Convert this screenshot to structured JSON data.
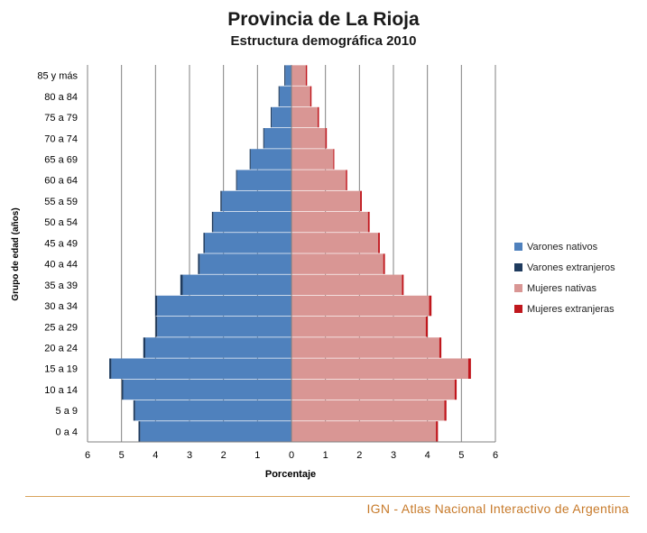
{
  "title": "Provincia de La Rioja",
  "subtitle": "Estructura demográfica 2010",
  "footer": "IGN - Atlas Nacional Interactivo de Argentina",
  "colors": {
    "varones_nativos": "#4f81bd",
    "varones_extranjeros": "#1f3b5e",
    "mujeres_nativas": "#d99694",
    "mujeres_extranjeras": "#c0171d",
    "footer": "#c77a2a",
    "grid": "#808080"
  },
  "chart_data": {
    "type": "bar",
    "orientation": "horizontal-pyramid",
    "title": "Provincia de La Rioja",
    "subtitle": "Estructura demográfica 2010",
    "xlabel": "Porcentaje",
    "ylabel": "Grupo de edad (años)",
    "xlim": [
      -6,
      6
    ],
    "xticks": [
      -6,
      -5,
      -4,
      -3,
      -2,
      -1,
      0,
      1,
      2,
      3,
      4,
      5,
      6
    ],
    "xtick_labels": [
      "6",
      "5",
      "4",
      "3",
      "2",
      "1",
      "0",
      "1",
      "2",
      "3",
      "4",
      "5",
      "6"
    ],
    "grid": "vertical",
    "legend_position": "right",
    "categories": [
      "0 a 4",
      "5 a 9",
      "10 a 14",
      "15 a 19",
      "20 a 24",
      "25 a 29",
      "30 a 34",
      "35 a 39",
      "40 a 44",
      "45 a 49",
      "50 a 54",
      "55 a 59",
      "60 a 64",
      "65 a 69",
      "70 a 74",
      "75 a 79",
      "80 a 84",
      "85 y más"
    ],
    "series": [
      {
        "name": "Varones nativos",
        "values": [
          4.45,
          4.6,
          4.95,
          5.3,
          4.3,
          3.95,
          3.95,
          3.2,
          2.7,
          2.55,
          2.3,
          2.05,
          1.6,
          1.2,
          0.8,
          0.58,
          0.35,
          0.18
        ]
      },
      {
        "name": "Varones extranjeros",
        "values": [
          0.05,
          0.05,
          0.04,
          0.06,
          0.06,
          0.05,
          0.06,
          0.07,
          0.05,
          0.04,
          0.04,
          0.04,
          0.03,
          0.03,
          0.03,
          0.03,
          0.03,
          0.03
        ]
      },
      {
        "name": "Mujeres nativas",
        "values": [
          4.25,
          4.5,
          4.8,
          5.2,
          4.35,
          3.95,
          4.05,
          3.25,
          2.7,
          2.55,
          2.25,
          2.02,
          1.6,
          1.23,
          1.0,
          0.77,
          0.55,
          0.42
        ]
      },
      {
        "name": "Mujeres extranjeras",
        "values": [
          0.06,
          0.06,
          0.06,
          0.08,
          0.06,
          0.06,
          0.07,
          0.05,
          0.05,
          0.05,
          0.05,
          0.05,
          0.04,
          0.03,
          0.04,
          0.04,
          0.04,
          0.04
        ]
      }
    ]
  }
}
